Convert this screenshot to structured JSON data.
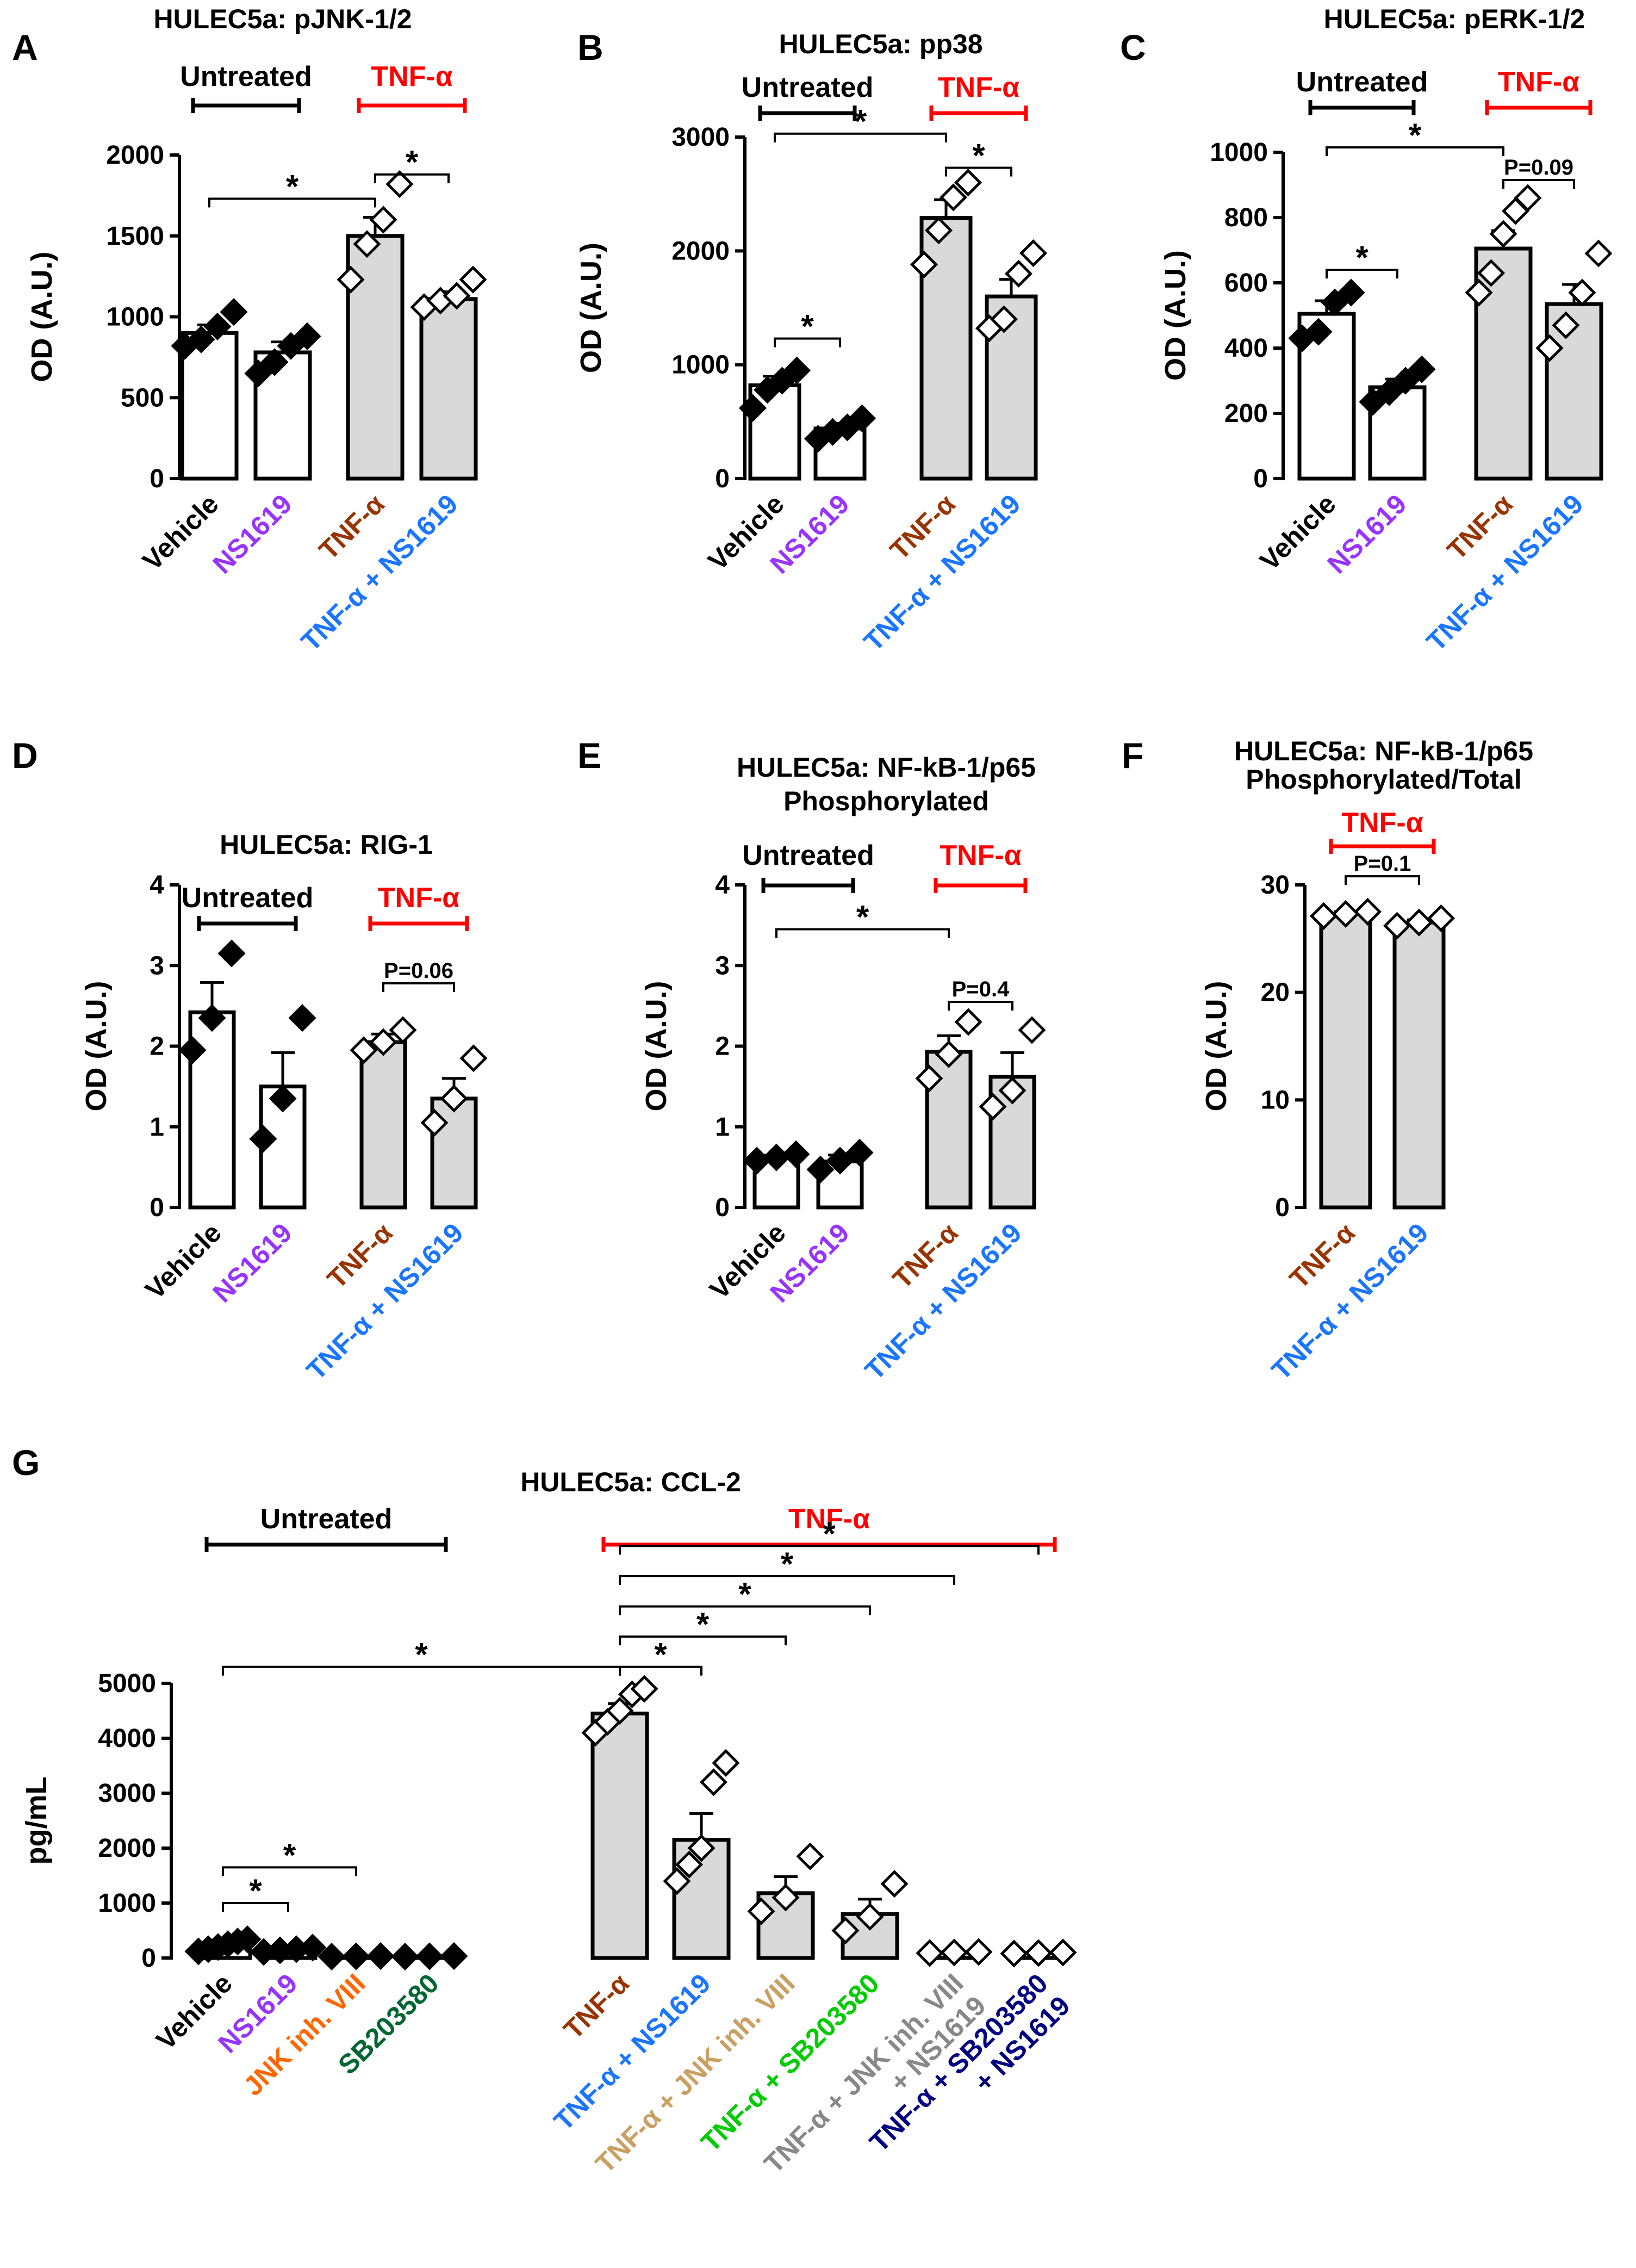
{
  "colors": {
    "untreated": "#000000",
    "tnf": "#ff0000",
    "bar_open": "#ffffff",
    "bar_grey": "#d9d9d9",
    "cat_vehicle": "#000000",
    "cat_ns1619": "#9933ff",
    "cat_tnf": "#993300",
    "cat_tnf_ns1619": "#1a75ff",
    "cat_jnk": "#ff6600",
    "cat_sb": "#006633",
    "cat_tnf_jnk": "#c9a062",
    "cat_tnf_sb": "#00cc00",
    "cat_tnf_jnk_ns": "#888888",
    "cat_tnf_sb_ns": "#000080"
  },
  "chart_data": [
    {
      "type": "bar",
      "panel": "A",
      "title": "HULEC5a: pJNK-1/2",
      "ylabel": "OD (A.U.)",
      "ylim": [
        0,
        2000
      ],
      "yticks": [
        0,
        500,
        1000,
        1500,
        2000
      ],
      "groups": [
        {
          "label": "Untreated",
          "color": "untreated",
          "span": [
            0,
            1
          ]
        },
        {
          "label": "TNF-α",
          "color": "tnf",
          "span": [
            2,
            3
          ]
        }
      ],
      "categories": [
        {
          "label": "Vehicle",
          "color": "cat_vehicle",
          "fill": "bar_open",
          "mean": 900,
          "sem": 50,
          "points": [
            820,
            860,
            940,
            1030
          ],
          "marker": "filled"
        },
        {
          "label": "NS1619",
          "color": "cat_ns1619",
          "fill": "bar_open",
          "mean": 780,
          "sem": 65,
          "points": [
            650,
            720,
            820,
            880
          ],
          "marker": "filled"
        },
        {
          "label": "TNF-α",
          "color": "cat_tnf",
          "fill": "bar_grey",
          "mean": 1500,
          "sem": 115,
          "points": [
            1230,
            1450,
            1600,
            1820
          ],
          "marker": "open"
        },
        {
          "label": "TNF-α + NS1619",
          "color": "cat_tnf_ns1619",
          "fill": "bar_grey",
          "mean": 1110,
          "sem": 45,
          "points": [
            1060,
            1100,
            1130,
            1230
          ],
          "marker": "open"
        }
      ],
      "significance": [
        {
          "a": 0,
          "b": 2,
          "y": 1730,
          "label": "*"
        },
        {
          "a": 2,
          "b": 3,
          "y": 1880,
          "label": "*"
        }
      ]
    },
    {
      "type": "bar",
      "panel": "B",
      "title": "HULEC5a: pp38",
      "ylabel": "OD (A.U.)",
      "ylim": [
        0,
        3000
      ],
      "yticks": [
        0,
        1000,
        2000,
        3000
      ],
      "groups": [
        {
          "label": "Untreated",
          "color": "untreated",
          "span": [
            0,
            1
          ]
        },
        {
          "label": "TNF-α",
          "color": "tnf",
          "span": [
            2,
            3
          ]
        }
      ],
      "categories": [
        {
          "label": "Vehicle",
          "color": "cat_vehicle",
          "fill": "bar_open",
          "mean": 820,
          "sem": 80,
          "points": [
            620,
            780,
            860,
            950
          ],
          "marker": "filled"
        },
        {
          "label": "NS1619",
          "color": "cat_ns1619",
          "fill": "bar_open",
          "mean": 440,
          "sem": 45,
          "points": [
            350,
            410,
            450,
            530
          ],
          "marker": "filled"
        },
        {
          "label": "TNF-α",
          "color": "cat_tnf",
          "fill": "bar_grey",
          "mean": 2290,
          "sem": 160,
          "points": [
            1880,
            2180,
            2470,
            2600
          ],
          "marker": "open"
        },
        {
          "label": "TNF-α + NS1619",
          "color": "cat_tnf_ns1619",
          "fill": "bar_grey",
          "mean": 1600,
          "sem": 150,
          "points": [
            1320,
            1400,
            1800,
            1980
          ],
          "marker": "open"
        }
      ],
      "significance": [
        {
          "a": 0,
          "b": 1,
          "y": 1230,
          "label": "*"
        },
        {
          "a": 0,
          "b": 2,
          "y": 3030,
          "label": "*"
        },
        {
          "a": 2,
          "b": 3,
          "y": 2730,
          "label": "*"
        }
      ]
    },
    {
      "type": "bar",
      "panel": "C",
      "title": "HULEC5a: pERK-1/2",
      "ylabel": "OD (A.U.)",
      "ylim": [
        0,
        1000
      ],
      "yticks": [
        0,
        200,
        400,
        600,
        800,
        1000
      ],
      "groups": [
        {
          "label": "Untreated",
          "color": "untreated",
          "span": [
            0,
            1
          ]
        },
        {
          "label": "TNF-α",
          "color": "tnf",
          "span": [
            2,
            3
          ]
        }
      ],
      "categories": [
        {
          "label": "Vehicle",
          "color": "cat_vehicle",
          "fill": "bar_open",
          "mean": 505,
          "sem": 40,
          "points": [
            430,
            450,
            540,
            570
          ],
          "marker": "filled"
        },
        {
          "label": "NS1619",
          "color": "cat_ns1619",
          "fill": "bar_open",
          "mean": 280,
          "sem": 25,
          "points": [
            235,
            265,
            300,
            335
          ],
          "marker": "filled"
        },
        {
          "label": "TNF-α",
          "color": "cat_tnf",
          "fill": "bar_grey",
          "mean": 705,
          "sem": 55,
          "points": [
            570,
            630,
            750,
            820,
            860
          ],
          "marker": "open"
        },
        {
          "label": "TNF-α + NS1619",
          "color": "cat_tnf_ns1619",
          "fill": "bar_grey",
          "mean": 535,
          "sem": 60,
          "points": [
            400,
            470,
            570,
            690
          ],
          "marker": "open"
        }
      ],
      "significance": [
        {
          "a": 0,
          "b": 1,
          "y": 640,
          "label": "*"
        },
        {
          "a": 0,
          "b": 2,
          "y": 1015,
          "label": "*"
        },
        {
          "a": 2,
          "b": 3,
          "y": 915,
          "label": "P=0.09"
        }
      ]
    },
    {
      "type": "bar",
      "panel": "D",
      "title": "HULEC5a: RIG-1",
      "ylabel": "OD (A.U.)",
      "ylim": [
        0,
        4
      ],
      "yticks": [
        0,
        1,
        2,
        3,
        4
      ],
      "groups": [
        {
          "label": "Untreated",
          "color": "untreated",
          "span": [
            0,
            1
          ]
        },
        {
          "label": "TNF-α",
          "color": "tnf",
          "span": [
            2,
            3
          ]
        }
      ],
      "categories": [
        {
          "label": "Vehicle",
          "color": "cat_vehicle",
          "fill": "bar_open",
          "mean": 2.42,
          "sem": 0.37,
          "points": [
            1.95,
            2.35,
            3.15
          ],
          "marker": "filled"
        },
        {
          "label": "NS1619",
          "color": "cat_ns1619",
          "fill": "bar_open",
          "mean": 1.5,
          "sem": 0.42,
          "points": [
            0.85,
            1.35,
            2.35
          ],
          "marker": "filled"
        },
        {
          "label": "TNF-α",
          "color": "cat_tnf",
          "fill": "bar_grey",
          "mean": 2.05,
          "sem": 0.1,
          "points": [
            1.95,
            2.05,
            2.2
          ],
          "marker": "open"
        },
        {
          "label": "TNF-α + NS1619",
          "color": "cat_tnf_ns1619",
          "fill": "bar_grey",
          "mean": 1.35,
          "sem": 0.25,
          "points": [
            1.05,
            1.35,
            1.85
          ],
          "marker": "open"
        }
      ],
      "significance": [
        {
          "a": 2,
          "b": 3,
          "y": 2.78,
          "label": "P=0.06"
        }
      ]
    },
    {
      "type": "bar",
      "panel": "E",
      "title": "HULEC5a: NF-kB-1/p65",
      "subtitle": "Phosphorylated",
      "ylabel": "OD (A.U.)",
      "ylim": [
        0,
        4
      ],
      "yticks": [
        0,
        1,
        2,
        3,
        4
      ],
      "groups": [
        {
          "label": "Untreated",
          "color": "untreated",
          "span": [
            0,
            1
          ]
        },
        {
          "label": "TNF-α",
          "color": "tnf",
          "span": [
            2,
            3
          ]
        }
      ],
      "categories": [
        {
          "label": "Vehicle",
          "color": "cat_vehicle",
          "fill": "bar_open",
          "mean": 0.62,
          "sem": 0.03,
          "points": [
            0.58,
            0.62,
            0.66
          ],
          "marker": "filled"
        },
        {
          "label": "NS1619",
          "color": "cat_ns1619",
          "fill": "bar_open",
          "mean": 0.57,
          "sem": 0.08,
          "points": [
            0.47,
            0.58,
            0.68
          ],
          "marker": "filled"
        },
        {
          "label": "TNF-α",
          "color": "cat_tnf",
          "fill": "bar_grey",
          "mean": 1.93,
          "sem": 0.2,
          "points": [
            1.6,
            1.9,
            2.3
          ],
          "marker": "open"
        },
        {
          "label": "TNF-α + NS1619",
          "color": "cat_tnf_ns1619",
          "fill": "bar_grey",
          "mean": 1.62,
          "sem": 0.3,
          "points": [
            1.25,
            1.45,
            2.2
          ],
          "marker": "open"
        }
      ],
      "significance": [
        {
          "a": 0,
          "b": 2,
          "y": 3.45,
          "label": "*"
        },
        {
          "a": 2,
          "b": 3,
          "y": 2.55,
          "label": "P=0.4"
        }
      ]
    },
    {
      "type": "bar",
      "panel": "F",
      "title": "HULEC5a: NF-kB-1/p65",
      "subtitle": "Phosphorylated/Total",
      "ylabel": "OD (A.U.)",
      "ylim": [
        0,
        30
      ],
      "yticks": [
        0,
        10,
        20,
        30
      ],
      "groups": [
        {
          "label": "TNF-α",
          "color": "tnf",
          "span": [
            0,
            1
          ]
        }
      ],
      "categories": [
        {
          "label": "TNF-α",
          "color": "cat_tnf",
          "fill": "bar_grey",
          "mean": 27.3,
          "sem": 0.2,
          "points": [
            27.1,
            27.3,
            27.5
          ],
          "marker": "open"
        },
        {
          "label": "TNF-α + NS1619",
          "color": "cat_tnf_ns1619",
          "fill": "bar_grey",
          "mean": 26.5,
          "sem": 0.25,
          "points": [
            26.2,
            26.5,
            26.9
          ],
          "marker": "open"
        }
      ],
      "significance": [
        {
          "a": 0,
          "b": 1,
          "y": 30.8,
          "label": "P=0.1"
        }
      ]
    },
    {
      "type": "bar",
      "panel": "G",
      "title": "HULEC5a: CCL-2",
      "ylabel": "pg/mL",
      "ylim": [
        0,
        5000
      ],
      "yticks": [
        0,
        1000,
        2000,
        3000,
        4000,
        5000
      ],
      "groups": [
        {
          "label": "Untreated",
          "color": "untreated",
          "span": [
            0,
            3
          ]
        },
        {
          "label": "TNF-α",
          "color": "tnf",
          "span": [
            4,
            9
          ]
        }
      ],
      "categories": [
        {
          "label": [
            "Vehicle"
          ],
          "color": "cat_vehicle",
          "fill": "bar_open",
          "mean": 220,
          "sem": 30,
          "points": [
            120,
            160,
            200,
            250,
            300,
            340
          ],
          "marker": "filled"
        },
        {
          "label": [
            "NS1619"
          ],
          "color": "cat_ns1619",
          "fill": "bar_open",
          "mean": 150,
          "sem": 20,
          "points": [
            110,
            140,
            160,
            190
          ],
          "marker": "filled"
        },
        {
          "label": [
            "JNK inh. VIII"
          ],
          "color": "cat_jnk",
          "fill": "bar_open",
          "mean": 30,
          "sem": 5,
          "points": [
            25,
            30,
            35
          ],
          "marker": "filled"
        },
        {
          "label": [
            "SB203580"
          ],
          "color": "cat_sb",
          "fill": "bar_open",
          "mean": 30,
          "sem": 5,
          "points": [
            25,
            30,
            35
          ],
          "marker": "filled"
        },
        {
          "label": [
            "TNF-α"
          ],
          "color": "cat_tnf",
          "fill": "bar_grey",
          "mean": 4450,
          "sem": 180,
          "points": [
            4100,
            4300,
            4500,
            4800,
            4900
          ],
          "marker": "open"
        },
        {
          "label": [
            "TNF-α + NS1619"
          ],
          "color": "cat_tnf_ns1619",
          "fill": "bar_grey",
          "mean": 2150,
          "sem": 480,
          "points": [
            1400,
            1700,
            2000,
            3200,
            3550
          ],
          "marker": "open"
        },
        {
          "label": [
            "TNF-α + JNK inh. VIII"
          ],
          "color": "cat_tnf_jnk",
          "fill": "bar_grey",
          "mean": 1180,
          "sem": 300,
          "points": [
            850,
            1100,
            1850
          ],
          "marker": "open"
        },
        {
          "label": [
            "TNF-α + SB203580"
          ],
          "color": "cat_tnf_sb",
          "fill": "bar_grey",
          "mean": 800,
          "sem": 270,
          "points": [
            500,
            750,
            1350
          ],
          "marker": "open"
        },
        {
          "label": [
            "TNF-α + JNK inh. VIII",
            "+ NS1619"
          ],
          "color": "cat_tnf_jnk_ns",
          "fill": "bar_grey",
          "mean": 100,
          "sem": 15,
          "points": [
            90,
            100,
            110
          ],
          "marker": "open"
        },
        {
          "label": [
            "TNF-α + SB203580",
            "+ NS1619"
          ],
          "color": "cat_tnf_sb_ns",
          "fill": "bar_grey",
          "mean": 90,
          "sem": 15,
          "points": [
            80,
            90,
            100
          ],
          "marker": "open"
        }
      ],
      "significance": [
        {
          "a": 0,
          "b": 1,
          "y": 1000,
          "label": "*"
        },
        {
          "a": 0,
          "b": 2,
          "y": 1650,
          "label": "*"
        },
        {
          "a": 0,
          "b": 4,
          "y": 5300,
          "label": "*"
        },
        {
          "a": 4,
          "b": 5,
          "y": 5300,
          "label": "*"
        },
        {
          "a": 4,
          "b": 6,
          "y": 5850,
          "label": "*"
        },
        {
          "a": 4,
          "b": 7,
          "y": 6400,
          "label": "*"
        },
        {
          "a": 4,
          "b": 8,
          "y": 6950,
          "label": "*"
        },
        {
          "a": 4,
          "b": 9,
          "y": 7500,
          "label": "*"
        }
      ]
    }
  ]
}
